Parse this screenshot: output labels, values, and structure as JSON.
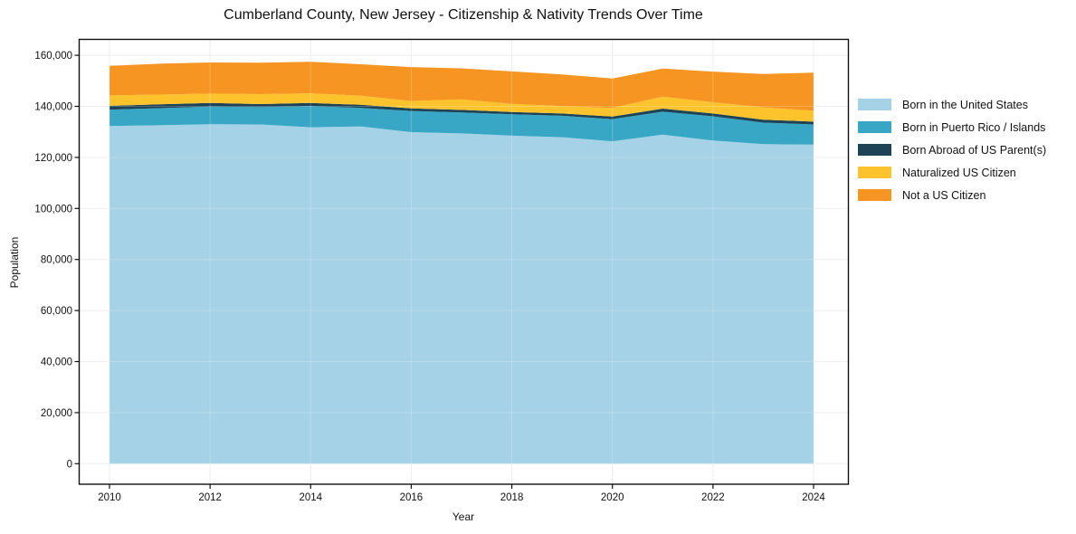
{
  "title": "Cumberland County, New Jersey - Citizenship & Nativity Trends Over Time",
  "axes": {
    "x_label": "Year",
    "y_label": "Population",
    "x_ticks": [
      2010,
      2012,
      2014,
      2016,
      2018,
      2020,
      2022,
      2024
    ],
    "y_ticks": [
      0,
      20000,
      40000,
      60000,
      80000,
      100000,
      120000,
      140000,
      160000
    ]
  },
  "legend": {
    "position": "right-outside",
    "entries": [
      "Born in the United States",
      "Born in Puerto Rico / Islands",
      "Born Abroad of US Parent(s)",
      "Naturalized US Citizen",
      "Not a US Citizen"
    ]
  },
  "chart_data": {
    "type": "area",
    "stacked": true,
    "title": "Cumberland County, New Jersey - Citizenship & Nativity Trends Over Time",
    "xlabel": "Year",
    "ylabel": "Population",
    "grid": true,
    "legend_position": "right",
    "xlim": [
      2010,
      2024
    ],
    "ylim": [
      0,
      160000
    ],
    "x": [
      2010,
      2011,
      2012,
      2013,
      2014,
      2015,
      2016,
      2017,
      2018,
      2019,
      2020,
      2021,
      2022,
      2023,
      2024
    ],
    "series": [
      {
        "name": "Born in the United States",
        "color": "#a5d2e6",
        "values": [
          132300,
          132600,
          133000,
          132900,
          131800,
          132100,
          129900,
          129400,
          128500,
          127900,
          126300,
          128900,
          126600,
          125200,
          125000
        ]
      },
      {
        "name": "Born in Puerto Rico / Islands",
        "color": "#38a7c6",
        "values": [
          6400,
          6700,
          6900,
          6800,
          8300,
          7300,
          8300,
          8200,
          8400,
          8400,
          8700,
          9000,
          9500,
          8400,
          7900
        ]
      },
      {
        "name": "Born Abroad of US Parent(s)",
        "color": "#1d4357",
        "values": [
          1500,
          1500,
          1400,
          1200,
          1200,
          1200,
          1000,
          1000,
          900,
          900,
          1000,
          1200,
          1100,
          1200,
          1100
        ]
      },
      {
        "name": "Naturalized US Citizen",
        "color": "#fcc32d",
        "values": [
          4100,
          3800,
          3700,
          3900,
          3800,
          3600,
          2900,
          4100,
          3200,
          2900,
          3400,
          4700,
          4400,
          4800,
          4300
        ]
      },
      {
        "name": "Not a US Citizen",
        "color": "#f79522",
        "values": [
          11600,
          12100,
          12200,
          12300,
          12400,
          12300,
          13300,
          12200,
          12700,
          12400,
          11500,
          11000,
          12000,
          13100,
          14900
        ]
      }
    ]
  }
}
